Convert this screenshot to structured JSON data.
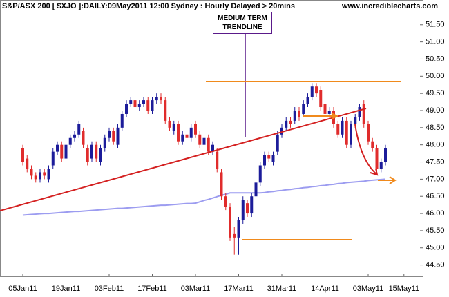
{
  "chart_data": {
    "type": "candlestick",
    "title": "S&P/ASX 200 [ $XJO ]:DAILY:09May2011 12:00 Sydney : Hourly Delayed > 20mins",
    "source": "www.incrediblecharts.com",
    "annotation": "MEDIUM TERM TRENDLINE",
    "x": [
      "2011-01-05",
      "2011-01-06",
      "2011-01-07",
      "2011-01-10",
      "2011-01-11",
      "2011-01-12",
      "2011-01-13",
      "2011-01-14",
      "2011-01-17",
      "2011-01-18",
      "2011-01-19",
      "2011-01-20",
      "2011-01-21",
      "2011-01-24",
      "2011-01-25",
      "2011-01-27",
      "2011-01-28",
      "2011-01-31",
      "2011-02-01",
      "2011-02-02",
      "2011-02-03",
      "2011-02-04",
      "2011-02-07",
      "2011-02-08",
      "2011-02-09",
      "2011-02-10",
      "2011-02-11",
      "2011-02-14",
      "2011-02-15",
      "2011-02-16",
      "2011-02-17",
      "2011-02-18",
      "2011-02-21",
      "2011-02-22",
      "2011-02-23",
      "2011-02-24",
      "2011-02-25",
      "2011-02-28",
      "2011-03-01",
      "2011-03-02",
      "2011-03-03",
      "2011-03-04",
      "2011-03-07",
      "2011-03-08",
      "2011-03-09",
      "2011-03-10",
      "2011-03-11",
      "2011-03-14",
      "2011-03-15",
      "2011-03-16",
      "2011-03-17",
      "2011-03-18",
      "2011-03-21",
      "2011-03-22",
      "2011-03-23",
      "2011-03-24",
      "2011-03-25",
      "2011-03-28",
      "2011-03-29",
      "2011-03-30",
      "2011-03-31",
      "2011-04-01",
      "2011-04-04",
      "2011-04-05",
      "2011-04-06",
      "2011-04-07",
      "2011-04-08",
      "2011-04-11",
      "2011-04-12",
      "2011-04-13",
      "2011-04-14",
      "2011-04-15",
      "2011-04-18",
      "2011-04-19",
      "2011-04-20",
      "2011-04-21",
      "2011-04-27",
      "2011-04-28",
      "2011-04-29",
      "2011-05-02",
      "2011-05-03",
      "2011-05-04",
      "2011-05-05",
      "2011-05-06",
      "2011-05-09"
    ],
    "open": [
      47.9,
      47.6,
      47.3,
      47.1,
      47.0,
      47.2,
      47.0,
      47.4,
      47.8,
      48.0,
      47.6,
      48.0,
      48.2,
      48.3,
      48.4,
      47.9,
      47.6,
      48.0,
      47.5,
      47.9,
      48.2,
      48.4,
      48.0,
      48.5,
      48.9,
      49.2,
      49.3,
      49.1,
      49.2,
      49.3,
      49.0,
      49.3,
      49.4,
      49.3,
      48.7,
      48.4,
      48.6,
      48.1,
      48.3,
      48.2,
      48.6,
      48.3,
      48.0,
      48.2,
      47.8,
      47.8,
      47.2,
      46.5,
      46.2,
      45.4,
      45.3,
      45.8,
      46.3,
      46.0,
      46.5,
      46.9,
      47.4,
      47.7,
      47.5,
      47.8,
      48.3,
      48.5,
      48.7,
      48.7,
      49.0,
      48.9,
      49.2,
      49.4,
      49.7,
      49.6,
      49.2,
      48.9,
      49.0,
      48.6,
      48.3,
      48.7,
      48.0,
      48.6,
      48.8,
      49.2,
      48.6,
      48.1,
      47.9,
      47.3,
      47.5
    ],
    "high": [
      48.0,
      47.7,
      47.4,
      47.2,
      47.3,
      47.3,
      47.4,
      47.9,
      48.1,
      48.1,
      48.1,
      48.3,
      48.4,
      48.7,
      48.5,
      48.0,
      48.1,
      48.1,
      48.0,
      48.3,
      48.5,
      48.5,
      48.6,
      49.0,
      49.3,
      49.4,
      49.4,
      49.3,
      49.4,
      49.4,
      49.4,
      49.5,
      49.5,
      49.4,
      48.8,
      48.7,
      48.7,
      48.4,
      48.4,
      48.6,
      48.7,
      48.4,
      48.3,
      48.3,
      48.1,
      47.9,
      47.3,
      46.6,
      46.3,
      45.6,
      45.9,
      46.5,
      46.4,
      46.6,
      47.0,
      47.5,
      47.8,
      47.8,
      47.8,
      48.4,
      48.6,
      48.8,
      48.8,
      49.1,
      49.1,
      49.3,
      49.5,
      49.8,
      49.8,
      49.7,
      49.3,
      49.1,
      49.1,
      48.7,
      48.8,
      48.8,
      48.7,
      48.9,
      49.2,
      49.3,
      48.7,
      48.2,
      48.0,
      47.6,
      48.0
    ],
    "low": [
      47.4,
      47.2,
      47.0,
      46.9,
      46.9,
      47.0,
      46.9,
      47.3,
      47.7,
      47.5,
      47.5,
      47.9,
      48.1,
      48.2,
      47.9,
      47.4,
      47.5,
      47.5,
      47.4,
      47.8,
      48.1,
      48.0,
      47.9,
      48.4,
      48.8,
      49.1,
      49.0,
      49.0,
      49.1,
      48.9,
      48.9,
      49.2,
      49.2,
      48.6,
      48.4,
      48.3,
      48.0,
      48.0,
      48.1,
      48.1,
      48.2,
      47.9,
      47.9,
      47.7,
      47.7,
      47.2,
      46.4,
      46.1,
      45.2,
      44.8,
      44.8,
      45.7,
      45.9,
      45.9,
      46.4,
      46.8,
      47.3,
      47.5,
      47.4,
      47.7,
      48.2,
      48.4,
      48.5,
      48.6,
      48.7,
      48.8,
      49.1,
      49.3,
      49.4,
      49.0,
      48.8,
      48.8,
      48.5,
      48.2,
      48.2,
      47.9,
      47.9,
      48.5,
      48.7,
      48.5,
      48.0,
      47.8,
      47.2,
      47.2,
      47.4
    ],
    "close": [
      47.5,
      47.3,
      47.1,
      47.0,
      47.2,
      47.1,
      47.3,
      47.8,
      48.0,
      47.6,
      48.0,
      48.2,
      48.3,
      48.6,
      48.0,
      47.5,
      48.0,
      47.6,
      47.9,
      48.2,
      48.4,
      48.1,
      48.5,
      48.9,
      49.2,
      49.3,
      49.1,
      49.2,
      49.3,
      49.0,
      49.3,
      49.4,
      49.3,
      48.7,
      48.5,
      48.6,
      48.1,
      48.3,
      48.2,
      48.5,
      48.3,
      48.0,
      48.2,
      47.8,
      48.0,
      47.3,
      46.5,
      46.2,
      45.3,
      45.3,
      45.8,
      46.4,
      46.0,
      46.5,
      46.9,
      47.4,
      47.7,
      47.6,
      47.7,
      48.3,
      48.5,
      48.7,
      48.6,
      49.0,
      48.8,
      49.2,
      49.4,
      49.7,
      49.5,
      49.1,
      48.9,
      49.0,
      48.6,
      48.3,
      48.7,
      48.0,
      48.6,
      48.8,
      49.1,
      48.6,
      48.1,
      47.9,
      47.3,
      47.5,
      47.9
    ],
    "up_color": "#1c1c9a",
    "down_color": "#e02c2c",
    "moving_average": {
      "color": "#9c9cf0",
      "values": [
        45.95,
        45.96,
        45.97,
        45.98,
        45.99,
        46.0,
        46.0,
        46.01,
        46.02,
        46.03,
        46.04,
        46.05,
        46.06,
        46.06,
        46.07,
        46.08,
        46.09,
        46.1,
        46.11,
        46.12,
        46.13,
        46.14,
        46.15,
        46.15,
        46.16,
        46.17,
        46.18,
        46.19,
        46.2,
        46.21,
        46.22,
        46.23,
        46.24,
        46.24,
        46.25,
        46.26,
        46.27,
        46.28,
        46.29,
        46.29,
        46.3,
        46.34,
        46.38,
        46.41,
        46.45,
        46.49,
        46.53,
        46.56,
        46.6,
        46.6,
        46.6,
        46.6,
        46.6,
        46.6,
        46.6,
        46.6,
        46.61,
        46.63,
        46.64,
        46.66,
        46.67,
        46.69,
        46.7,
        46.72,
        46.73,
        46.75,
        46.76,
        46.78,
        46.79,
        46.81,
        46.82,
        46.84,
        46.85,
        46.87,
        46.88,
        46.9,
        46.91,
        46.92,
        46.93,
        46.94,
        46.96,
        46.97,
        46.98,
        46.99,
        47.0
      ]
    },
    "ylim": [
      44.17,
      52.22
    ],
    "yticks": [
      {
        "value": 44.5,
        "label": "44.50"
      },
      {
        "value": 45,
        "label": "45.00"
      },
      {
        "value": 45.5,
        "label": "45.50"
      },
      {
        "value": 46,
        "label": "46.00"
      },
      {
        "value": 46.5,
        "label": "46.50"
      },
      {
        "value": 47,
        "label": "47.00"
      },
      {
        "value": 47.5,
        "label": "47.50"
      },
      {
        "value": 48,
        "label": "48.00"
      },
      {
        "value": 48.5,
        "label": "48.50"
      },
      {
        "value": 49,
        "label": "49.00"
      },
      {
        "value": 49.5,
        "label": "49.50"
      },
      {
        "value": 50,
        "label": "50.00"
      },
      {
        "value": 50.5,
        "label": "50.50"
      },
      {
        "value": 51,
        "label": "51.00"
      },
      {
        "value": 51.5,
        "label": "51.50"
      }
    ],
    "xticks": [
      {
        "value": "2011-01-05",
        "label": "05Jan11"
      },
      {
        "value": "2011-01-19",
        "label": "19Jan11"
      },
      {
        "value": "2011-02-03",
        "label": "03Feb11"
      },
      {
        "value": "2011-02-17",
        "label": "17Feb11"
      },
      {
        "value": "2011-03-03",
        "label": "03Mar11"
      },
      {
        "value": "2011-03-17",
        "label": "17Mar11"
      },
      {
        "value": "2011-03-31",
        "label": "31Mar11"
      },
      {
        "value": "2011-04-14",
        "label": "14Apr11"
      },
      {
        "value": "2011-05-03",
        "label": "03May11"
      },
      {
        "value": "2011-05-15",
        "label": "15May11"
      }
    ]
  }
}
